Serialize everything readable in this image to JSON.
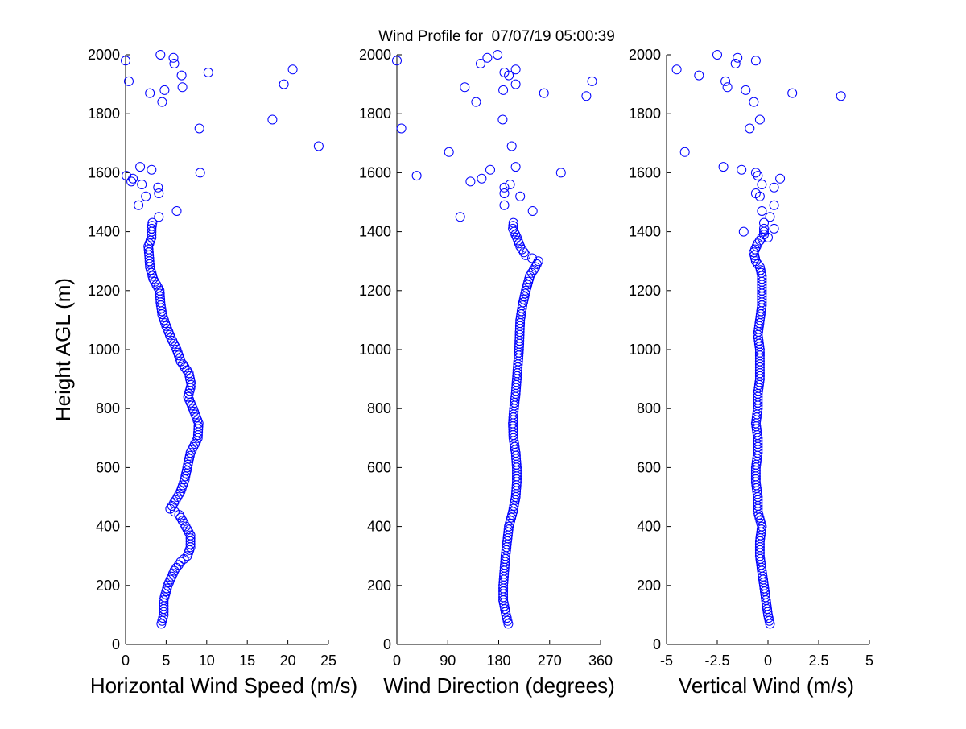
{
  "title": "Wind Profile for  07/07/19 05:00:39",
  "chart_data": [
    {
      "type": "scatter",
      "xlabel": "Horizontal Wind Speed (m/s)",
      "ylabel": "Height AGL (m)",
      "xlim": [
        0,
        25
      ],
      "ylim": [
        0,
        2000
      ],
      "xticks": [
        0,
        5,
        10,
        15,
        20,
        25
      ],
      "yticks": [
        0,
        200,
        400,
        600,
        800,
        1000,
        1200,
        1400,
        1600,
        1800,
        2000
      ],
      "xtick_labels": [
        "0",
        "5",
        "10",
        "15",
        "20",
        "25"
      ],
      "ytick_labels": [
        "0",
        "200",
        "400",
        "600",
        "800",
        "1000",
        "1200",
        "1400",
        "1600",
        "1800",
        "2000"
      ],
      "color": "#0000ff",
      "x_profile_anchors": [
        [
          70,
          4.4
        ],
        [
          100,
          4.7
        ],
        [
          150,
          4.7
        ],
        [
          200,
          5.2
        ],
        [
          250,
          6.0
        ],
        [
          280,
          6.8
        ],
        [
          300,
          7.6
        ],
        [
          330,
          8.0
        ],
        [
          370,
          8.0
        ],
        [
          400,
          7.4
        ],
        [
          440,
          6.6
        ],
        [
          460,
          5.5
        ],
        [
          490,
          6.2
        ],
        [
          520,
          6.8
        ],
        [
          560,
          7.3
        ],
        [
          600,
          7.6
        ],
        [
          650,
          8.0
        ],
        [
          700,
          8.9
        ],
        [
          750,
          9.0
        ],
        [
          800,
          8.3
        ],
        [
          840,
          7.7
        ],
        [
          880,
          8.1
        ],
        [
          920,
          7.8
        ],
        [
          960,
          6.8
        ],
        [
          1000,
          6.3
        ],
        [
          1040,
          5.6
        ],
        [
          1080,
          5.0
        ],
        [
          1120,
          4.5
        ],
        [
          1160,
          4.3
        ],
        [
          1200,
          4.2
        ],
        [
          1240,
          3.4
        ],
        [
          1280,
          3.0
        ],
        [
          1320,
          2.9
        ],
        [
          1350,
          2.8
        ],
        [
          1380,
          3.2
        ],
        [
          1410,
          3.2
        ],
        [
          1430,
          3.3
        ]
      ],
      "x_scatter": [
        [
          1450,
          4.1
        ],
        [
          1470,
          6.3
        ],
        [
          1490,
          1.6
        ],
        [
          1520,
          2.5
        ],
        [
          1530,
          4.1
        ],
        [
          1550,
          4.0
        ],
        [
          1560,
          2.0
        ],
        [
          1570,
          0.7
        ],
        [
          1580,
          0.9
        ],
        [
          1590,
          0.1
        ],
        [
          1600,
          9.2
        ],
        [
          1610,
          3.2
        ],
        [
          1620,
          1.8
        ],
        [
          1690,
          23.8
        ],
        [
          1750,
          9.1
        ],
        [
          1780,
          18.1
        ],
        [
          1840,
          4.5
        ],
        [
          1870,
          3.0
        ],
        [
          1880,
          4.8
        ],
        [
          1890,
          7.0
        ],
        [
          1900,
          19.5
        ],
        [
          1910,
          0.4
        ],
        [
          1930,
          6.9
        ],
        [
          1940,
          10.2
        ],
        [
          1950,
          20.6
        ],
        [
          1970,
          6.0
        ],
        [
          1980,
          0.0
        ],
        [
          1990,
          5.9
        ],
        [
          2000,
          4.3
        ]
      ]
    },
    {
      "type": "scatter",
      "xlabel": "Wind Direction (degrees)",
      "ylabel": "",
      "xlim": [
        0,
        360
      ],
      "ylim": [
        0,
        2000
      ],
      "xticks": [
        0,
        90,
        180,
        270,
        360
      ],
      "yticks": [
        0,
        200,
        400,
        600,
        800,
        1000,
        1200,
        1400,
        1600,
        1800,
        2000
      ],
      "xtick_labels": [
        "0",
        "90",
        "180",
        "270",
        "360"
      ],
      "ytick_labels": [
        "0",
        "200",
        "400",
        "600",
        "800",
        "1000",
        "1200",
        "1400",
        "1600",
        "1800",
        "2000"
      ],
      "color": "#0000ff",
      "x_profile_anchors": [
        [
          70,
          197
        ],
        [
          100,
          193
        ],
        [
          150,
          188
        ],
        [
          200,
          188
        ],
        [
          250,
          190
        ],
        [
          300,
          192
        ],
        [
          350,
          195
        ],
        [
          400,
          198
        ],
        [
          450,
          205
        ],
        [
          500,
          210
        ],
        [
          550,
          212
        ],
        [
          600,
          212
        ],
        [
          650,
          210
        ],
        [
          700,
          206
        ],
        [
          750,
          205
        ],
        [
          800,
          207
        ],
        [
          850,
          210
        ],
        [
          900,
          212
        ],
        [
          950,
          214
        ],
        [
          1000,
          216
        ],
        [
          1050,
          217
        ],
        [
          1100,
          218
        ],
        [
          1150,
          222
        ],
        [
          1200,
          228
        ],
        [
          1250,
          235
        ],
        [
          1280,
          245
        ],
        [
          1300,
          250
        ],
        [
          1320,
          228
        ],
        [
          1350,
          218
        ],
        [
          1380,
          212
        ],
        [
          1410,
          205
        ],
        [
          1430,
          206
        ]
      ],
      "x_scatter": [
        [
          1450,
          112
        ],
        [
          1470,
          240
        ],
        [
          1490,
          190
        ],
        [
          1520,
          218
        ],
        [
          1530,
          190
        ],
        [
          1550,
          190
        ],
        [
          1560,
          200
        ],
        [
          1570,
          130
        ],
        [
          1580,
          150
        ],
        [
          1590,
          35
        ],
        [
          1600,
          290
        ],
        [
          1610,
          165
        ],
        [
          1620,
          210
        ],
        [
          1670,
          92
        ],
        [
          1690,
          203
        ],
        [
          1750,
          8
        ],
        [
          1780,
          187
        ],
        [
          1840,
          140
        ],
        [
          1860,
          335
        ],
        [
          1870,
          260
        ],
        [
          1880,
          188
        ],
        [
          1890,
          120
        ],
        [
          1900,
          210
        ],
        [
          1910,
          345
        ],
        [
          1930,
          198
        ],
        [
          1940,
          190
        ],
        [
          1950,
          210
        ],
        [
          1970,
          148
        ],
        [
          1980,
          0
        ],
        [
          1990,
          160
        ],
        [
          2000,
          178
        ]
      ]
    },
    {
      "type": "scatter",
      "xlabel": "Vertical Wind (m/s)",
      "ylabel": "",
      "xlim": [
        -5,
        5
      ],
      "ylim": [
        0,
        2000
      ],
      "xticks": [
        -5,
        -2.5,
        0,
        2.5,
        5
      ],
      "yticks": [
        0,
        200,
        400,
        600,
        800,
        1000,
        1200,
        1400,
        1600,
        1800,
        2000
      ],
      "xtick_labels": [
        "-5",
        "-2.5",
        "0",
        "2.5",
        "5"
      ],
      "ytick_labels": [
        "0",
        "200",
        "400",
        "600",
        "800",
        "1000",
        "1200",
        "1400",
        "1600",
        "1800",
        "2000"
      ],
      "color": "#0000ff",
      "x_profile_anchors": [
        [
          70,
          0.1
        ],
        [
          100,
          0.0
        ],
        [
          150,
          -0.1
        ],
        [
          200,
          -0.2
        ],
        [
          250,
          -0.3
        ],
        [
          300,
          -0.4
        ],
        [
          350,
          -0.4
        ],
        [
          400,
          -0.3
        ],
        [
          450,
          -0.5
        ],
        [
          500,
          -0.5
        ],
        [
          550,
          -0.6
        ],
        [
          600,
          -0.6
        ],
        [
          650,
          -0.5
        ],
        [
          700,
          -0.5
        ],
        [
          750,
          -0.6
        ],
        [
          800,
          -0.5
        ],
        [
          850,
          -0.5
        ],
        [
          900,
          -0.4
        ],
        [
          950,
          -0.4
        ],
        [
          1000,
          -0.4
        ],
        [
          1050,
          -0.5
        ],
        [
          1100,
          -0.4
        ],
        [
          1150,
          -0.3
        ],
        [
          1200,
          -0.3
        ],
        [
          1250,
          -0.3
        ],
        [
          1280,
          -0.4
        ],
        [
          1300,
          -0.6
        ],
        [
          1330,
          -0.7
        ],
        [
          1360,
          -0.5
        ],
        [
          1390,
          -0.2
        ],
        [
          1410,
          -0.2
        ]
      ],
      "x_scatter": [
        [
          1380,
          0.0
        ],
        [
          1400,
          -1.2
        ],
        [
          1410,
          0.3
        ],
        [
          1430,
          -0.2
        ],
        [
          1450,
          0.1
        ],
        [
          1470,
          -0.3
        ],
        [
          1490,
          0.3
        ],
        [
          1520,
          -0.4
        ],
        [
          1530,
          -0.6
        ],
        [
          1550,
          0.3
        ],
        [
          1560,
          -0.3
        ],
        [
          1580,
          0.6
        ],
        [
          1590,
          -0.5
        ],
        [
          1600,
          -0.6
        ],
        [
          1610,
          -1.3
        ],
        [
          1620,
          -2.2
        ],
        [
          1670,
          -4.1
        ],
        [
          1750,
          -0.9
        ],
        [
          1780,
          -0.4
        ],
        [
          1840,
          -0.7
        ],
        [
          1860,
          3.6
        ],
        [
          1870,
          1.2
        ],
        [
          1880,
          -1.1
        ],
        [
          1890,
          -2.0
        ],
        [
          1910,
          -2.1
        ],
        [
          1930,
          -3.4
        ],
        [
          1950,
          -4.5
        ],
        [
          1970,
          -1.6
        ],
        [
          1980,
          -0.6
        ],
        [
          1990,
          -1.5
        ],
        [
          2000,
          -2.5
        ]
      ]
    }
  ]
}
